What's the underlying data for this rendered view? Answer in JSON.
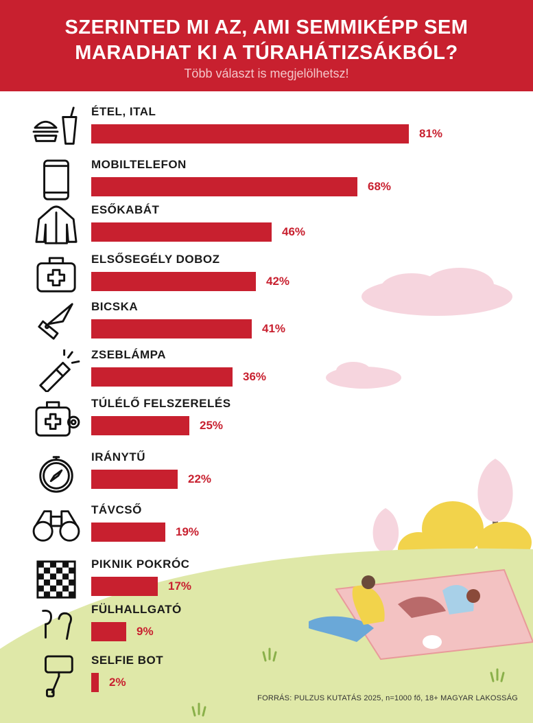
{
  "header": {
    "title_line1": "SZERINTED MI AZ, AMI SEMMIKÉPP SEM",
    "title_line2": "MARADHAT KI A TÚRAHÁTIZSÁKBÓL?",
    "subtitle": "Több választ is megjelölhetsz!"
  },
  "colors": {
    "accent": "#c8202f",
    "grass": "#dfe8a8",
    "cloud": "#f6d5de"
  },
  "chart_data": {
    "type": "bar",
    "orientation": "horizontal",
    "value_unit": "%",
    "xlim": [
      0,
      100
    ],
    "grid": false,
    "categories": [
      "ÉTEL, ITAL",
      "MOBILTELEFON",
      "ESŐKABÁT",
      "ELSŐSEGÉLY DOBOZ",
      "BICSKA",
      "ZSEBLÁMPA",
      "TÚLÉLŐ FELSZERELÉS",
      "IRÁNYTŰ",
      "TÁVCSŐ",
      "PIKNIK POKRÓC",
      "FÜLHALLGATÓ",
      "SELFIE BOT"
    ],
    "values": [
      81,
      68,
      46,
      42,
      41,
      36,
      25,
      22,
      19,
      17,
      9,
      2
    ],
    "value_labels": [
      "81%",
      "68%",
      "46%",
      "42%",
      "41%",
      "36%",
      "25%",
      "22%",
      "19%",
      "17%",
      "9%",
      "2%"
    ],
    "icons": [
      "burger-drink-icon",
      "smartphone-icon",
      "raincoat-icon",
      "first-aid-kit-icon",
      "pocket-knife-icon",
      "flashlight-icon",
      "survival-kit-icon",
      "compass-icon",
      "binoculars-icon",
      "picnic-blanket-icon",
      "earbuds-icon",
      "selfie-stick-icon"
    ]
  },
  "footer": {
    "source": "FORRÁS: PULZUS KUTATÁS 2025, n=1000 fő, 18+ MAGYAR LAKOSSÁG"
  }
}
